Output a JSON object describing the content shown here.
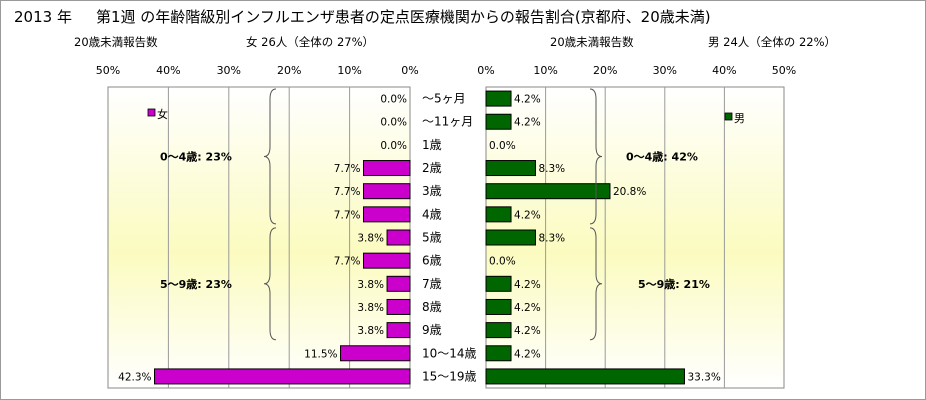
{
  "title": {
    "year": "2013 年",
    "text": "第1週 の年齢階級別インフルエンザ患者の定点医療機関からの報告割合(京都府、20歳未満)"
  },
  "subtitles": {
    "left_label": "20歳未満報告数",
    "left_summary": "女 26人（全体の 27%）",
    "right_label": "20歳未満報告数",
    "right_summary": "男 24人（全体の 22%）"
  },
  "colors": {
    "female": "#cc00cc",
    "male": "#006600",
    "plot_bg_top": "#ffffff",
    "plot_bg_mid": "#fbfbc0"
  },
  "chart_data": [
    {
      "type": "bar",
      "orientation": "horizontal",
      "direction": "right-to-left",
      "panel": "female",
      "categories": [
        "〜5ヶ月",
        "〜11ヶ月",
        "1歳",
        "2歳",
        "3歳",
        "4歳",
        "5歳",
        "6歳",
        "7歳",
        "8歳",
        "9歳",
        "10〜14歳",
        "15〜19歳"
      ],
      "series": [
        {
          "name": "女",
          "values": [
            0.0,
            0.0,
            0.0,
            7.7,
            7.7,
            7.7,
            3.8,
            7.7,
            3.8,
            3.8,
            3.8,
            11.5,
            42.3
          ],
          "labels": [
            "0.0%",
            "0.0%",
            "0.0%",
            "7.7%",
            "7.7%",
            "7.7%",
            "3.8%",
            "7.7%",
            "3.8%",
            "3.8%",
            "3.8%",
            "11.5%",
            "42.3%"
          ]
        }
      ],
      "xlim": [
        0,
        50
      ],
      "ticks": [
        "50%",
        "40%",
        "30%",
        "20%",
        "10%",
        "0%"
      ],
      "legend": "top-left",
      "grid": true,
      "annotations": [
        {
          "text": "0〜4歳: 23%",
          "brace_from": "〜5ヶ月",
          "brace_to": "4歳"
        },
        {
          "text": "5〜9歳: 23%",
          "brace_from": "5歳",
          "brace_to": "9歳"
        }
      ]
    },
    {
      "type": "bar",
      "orientation": "horizontal",
      "direction": "left-to-right",
      "panel": "male",
      "categories": [
        "〜5ヶ月",
        "〜11ヶ月",
        "1歳",
        "2歳",
        "3歳",
        "4歳",
        "5歳",
        "6歳",
        "7歳",
        "8歳",
        "9歳",
        "10〜14歳",
        "15〜19歳"
      ],
      "series": [
        {
          "name": "男",
          "values": [
            4.2,
            4.2,
            0.0,
            8.3,
            20.8,
            4.2,
            8.3,
            0.0,
            4.2,
            4.2,
            4.2,
            4.2,
            33.3
          ],
          "labels": [
            "4.2%",
            "4.2%",
            "0.0%",
            "8.3%",
            "20.8%",
            "4.2%",
            "8.3%",
            "0.0%",
            "4.2%",
            "4.2%",
            "4.2%",
            "4.2%",
            "33.3%"
          ]
        }
      ],
      "xlim": [
        0,
        50
      ],
      "ticks": [
        "0%",
        "10%",
        "20%",
        "30%",
        "40%",
        "50%"
      ],
      "legend": "top-right",
      "grid": true,
      "annotations": [
        {
          "text": "0〜4歳: 42%",
          "brace_from": "〜5ヶ月",
          "brace_to": "4歳"
        },
        {
          "text": "5〜9歳: 21%",
          "brace_from": "5歳",
          "brace_to": "9歳"
        }
      ]
    }
  ]
}
